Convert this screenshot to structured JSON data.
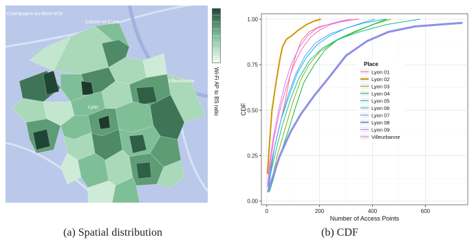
{
  "figure": {
    "caption_a": "(a) Spatial distribution",
    "caption_b": "(b) CDF"
  },
  "map": {
    "colorbar_label": "Wi-Fi AP to BS ratio",
    "places": [
      "Champagne-au-Mont-d'Or",
      "Caluire-et-Cuire",
      "Villeurbanne",
      "Lyon"
    ],
    "colors": {
      "base": "#b9c7e8",
      "cell_light": "#cdebd7",
      "cell_mid": "#7fbf98",
      "cell_dark": "#2f5f45"
    }
  },
  "chart_data": {
    "type": "line",
    "title": "",
    "xlabel": "Number of Access Points",
    "ylabel": "CDF",
    "xlim": [
      -20,
      760
    ],
    "ylim": [
      -0.02,
      1.03
    ],
    "xticks": [
      0,
      200,
      400,
      600
    ],
    "yticks": [
      0.0,
      0.25,
      0.5,
      0.75,
      1.0
    ],
    "ytick_labels": [
      "0.00",
      "0.25",
      "0.50",
      "0.75",
      "1.00"
    ],
    "grid": true,
    "legend_title": "Place",
    "legend_position": "center-right",
    "series": [
      {
        "name": "Lyon 01",
        "color": "#f8766d",
        "width": 1,
        "x": [
          5,
          15,
          30,
          50,
          70,
          90,
          110,
          130,
          160,
          200,
          260,
          340
        ],
        "y": [
          0.05,
          0.2,
          0.3,
          0.42,
          0.55,
          0.7,
          0.8,
          0.88,
          0.93,
          0.96,
          0.98,
          1.0
        ]
      },
      {
        "name": "Lyon 02",
        "color": "#d39200",
        "width": 2,
        "x": [
          3,
          10,
          20,
          35,
          50,
          60,
          75,
          95,
          120,
          150,
          180,
          205
        ],
        "y": [
          0.15,
          0.3,
          0.5,
          0.65,
          0.78,
          0.85,
          0.89,
          0.91,
          0.94,
          0.97,
          0.99,
          1.0
        ]
      },
      {
        "name": "Lyon 03",
        "color": "#93aa00",
        "width": 1,
        "x": [
          8,
          20,
          40,
          70,
          100,
          130,
          160,
          200,
          260,
          320,
          400,
          470
        ],
        "y": [
          0.05,
          0.12,
          0.25,
          0.4,
          0.55,
          0.67,
          0.75,
          0.82,
          0.88,
          0.92,
          0.97,
          1.0
        ]
      },
      {
        "name": "Lyon 04",
        "color": "#00ba38",
        "width": 1,
        "x": [
          10,
          25,
          50,
          80,
          110,
          140,
          180,
          220,
          270,
          330,
          400,
          455
        ],
        "y": [
          0.05,
          0.12,
          0.25,
          0.38,
          0.52,
          0.65,
          0.75,
          0.83,
          0.89,
          0.93,
          0.97,
          1.0
        ]
      },
      {
        "name": "Lyon 05",
        "color": "#00c19f",
        "width": 1,
        "x": [
          5,
          15,
          35,
          60,
          90,
          120,
          160,
          210,
          270,
          350,
          450,
          580
        ],
        "y": [
          0.05,
          0.15,
          0.28,
          0.42,
          0.56,
          0.67,
          0.77,
          0.84,
          0.89,
          0.93,
          0.97,
          1.0
        ]
      },
      {
        "name": "Lyon 06",
        "color": "#00b9e3",
        "width": 1,
        "x": [
          4,
          12,
          30,
          55,
          85,
          115,
          150,
          190,
          240,
          300,
          370,
          450
        ],
        "y": [
          0.05,
          0.15,
          0.3,
          0.45,
          0.58,
          0.7,
          0.79,
          0.86,
          0.91,
          0.95,
          0.98,
          1.0
        ]
      },
      {
        "name": "Lyon 07",
        "color": "#619cff",
        "width": 1,
        "x": [
          5,
          15,
          30,
          55,
          80,
          110,
          145,
          185,
          240,
          300,
          360,
          410
        ],
        "y": [
          0.05,
          0.15,
          0.3,
          0.45,
          0.58,
          0.7,
          0.8,
          0.87,
          0.92,
          0.95,
          0.98,
          1.0
        ]
      },
      {
        "name": "Lyon 08",
        "color": "#8f8fea",
        "width": 3,
        "x": [
          5,
          20,
          50,
          90,
          130,
          180,
          230,
          300,
          380,
          460,
          560,
          740
        ],
        "y": [
          0.05,
          0.12,
          0.25,
          0.38,
          0.48,
          0.58,
          0.67,
          0.8,
          0.88,
          0.93,
          0.96,
          0.98
        ]
      },
      {
        "name": "Lyon 09",
        "color": "#db72fb",
        "width": 1,
        "x": [
          3,
          10,
          25,
          45,
          70,
          95,
          125,
          155,
          190,
          230,
          280,
          320
        ],
        "y": [
          0.08,
          0.2,
          0.35,
          0.5,
          0.65,
          0.76,
          0.85,
          0.91,
          0.95,
          0.97,
          0.99,
          1.0
        ]
      },
      {
        "name": "Villeurbanne",
        "color": "#ff61c3",
        "width": 1,
        "x": [
          3,
          12,
          28,
          50,
          75,
          100,
          130,
          165,
          200,
          240,
          290,
          350
        ],
        "y": [
          0.08,
          0.2,
          0.35,
          0.5,
          0.63,
          0.74,
          0.83,
          0.9,
          0.94,
          0.97,
          0.99,
          1.0
        ]
      }
    ]
  }
}
